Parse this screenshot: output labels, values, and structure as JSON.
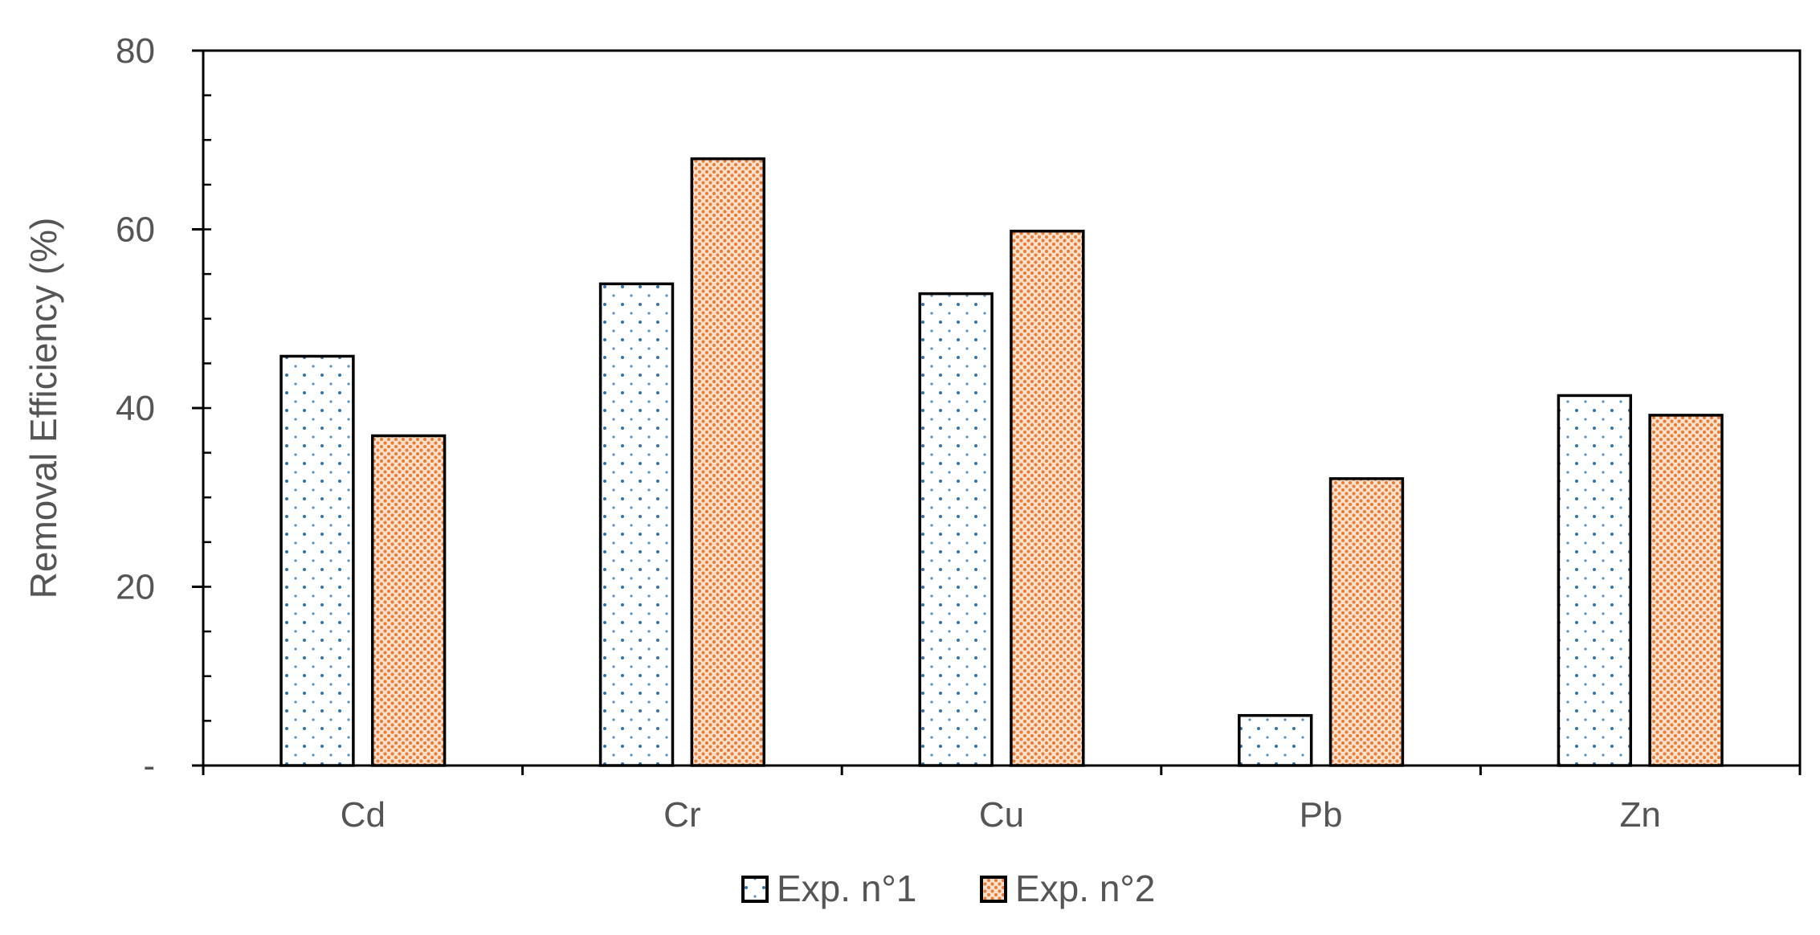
{
  "chart_data": {
    "type": "bar",
    "title": "",
    "xlabel": "",
    "ylabel": "Removal Efficiency (%)",
    "ylim": [
      0,
      80
    ],
    "yticks": [
      0,
      20,
      40,
      60,
      80
    ],
    "ytick_labels": [
      "-",
      "20",
      "40",
      "60",
      "80"
    ],
    "minor_tick_step": 5,
    "grid": false,
    "legend_position": "bottom-center",
    "categories": [
      "Cd",
      "Cr",
      "Cu",
      "Pb",
      "Zn"
    ],
    "series": [
      {
        "name": "Exp. n°1",
        "values": [
          45.8,
          53.9,
          52.8,
          5.6,
          41.4
        ],
        "color": "#2e75b6",
        "pattern": "sparse-dots"
      },
      {
        "name": "Exp. n°2",
        "values": [
          36.9,
          67.9,
          59.8,
          32.1,
          39.2
        ],
        "color": "#ed7d31",
        "pattern": "dense-dots"
      }
    ]
  }
}
